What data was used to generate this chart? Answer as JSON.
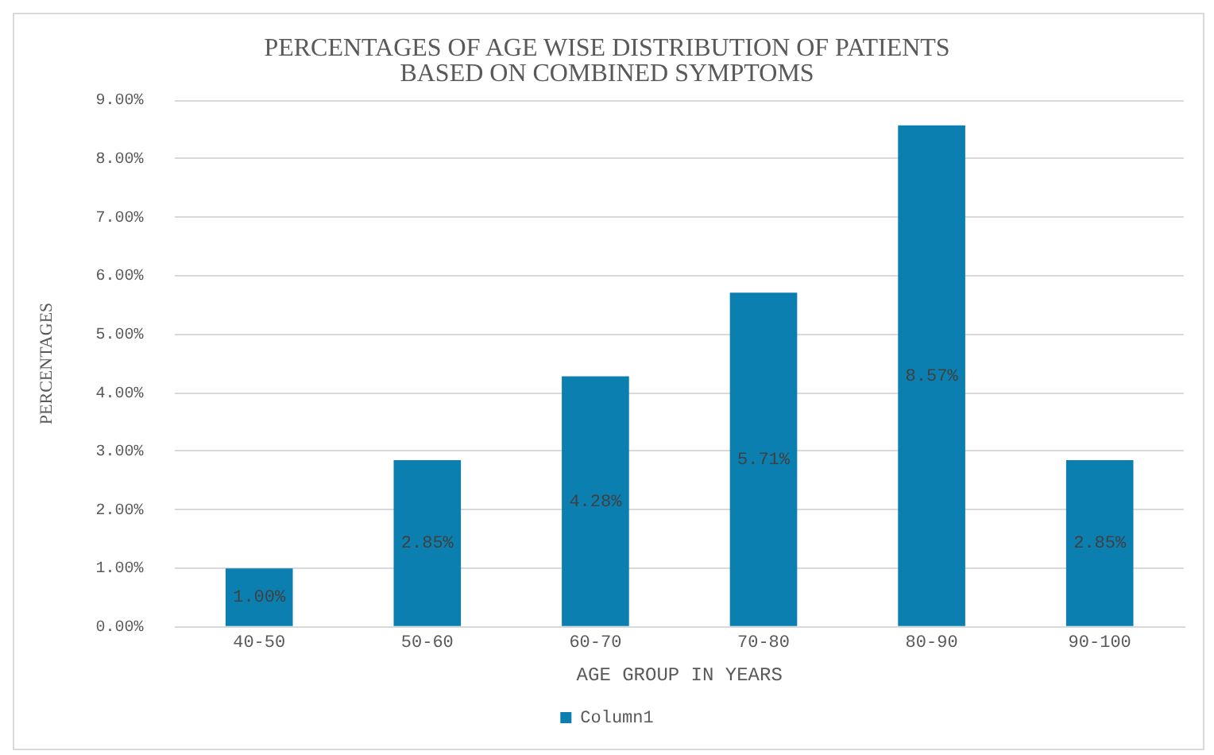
{
  "chart_data": {
    "type": "bar",
    "title": "PERCENTAGES OF AGE WISE DISTRIBUTION OF PATIENTS BASED ON COMBINED SYMPTOMS",
    "xlabel": "AGE GROUP IN YEARS",
    "ylabel": "PERCENTAGES",
    "categories": [
      "40-50",
      "50-60",
      "60-70",
      "70-80",
      "80-90",
      "90-100"
    ],
    "series": [
      {
        "name": "Column1",
        "color": "#0b80b0",
        "values": [
          1.0,
          2.85,
          4.28,
          5.71,
          8.57,
          2.85
        ],
        "value_labels": [
          "1.00%",
          "2.85%",
          "4.28%",
          "5.71%",
          "8.57%",
          "2.85%"
        ]
      }
    ],
    "ylim": [
      0,
      9
    ],
    "yticks": [
      {
        "value": 0,
        "label": "0.00%"
      },
      {
        "value": 1,
        "label": "1.00%"
      },
      {
        "value": 2,
        "label": "2.00%"
      },
      {
        "value": 3,
        "label": "3.00%"
      },
      {
        "value": 4,
        "label": "4.00%"
      },
      {
        "value": 5,
        "label": "5.00%"
      },
      {
        "value": 6,
        "label": "6.00%"
      },
      {
        "value": 7,
        "label": "7.00%"
      },
      {
        "value": 8,
        "label": "8.00%"
      },
      {
        "value": 9,
        "label": "9.00%"
      }
    ],
    "grid": "y",
    "legend": "bottom"
  }
}
